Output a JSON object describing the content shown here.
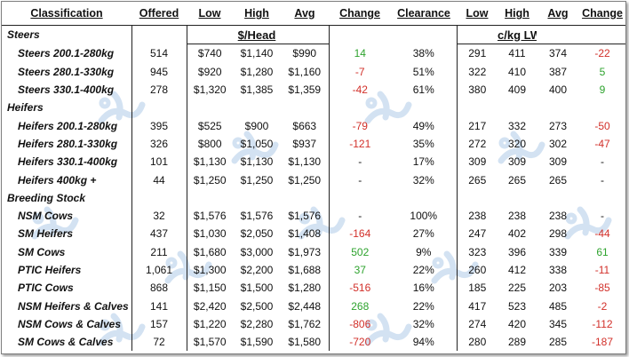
{
  "headers": {
    "classification": "Classification",
    "offered": "Offered",
    "low": "Low",
    "high": "High",
    "avg": "Avg",
    "change": "Change",
    "clearance": "Clearance",
    "low2": "Low",
    "high2": "High",
    "avg2": "Avg",
    "change2": "Change"
  },
  "units": {
    "head": "$/Head",
    "lw": "c/kg LW"
  },
  "sections": [
    {
      "title": "Steers",
      "rows": [
        {
          "name": "Steers 200.1-280kg",
          "offered": "514",
          "low": "$740",
          "high": "$1,140",
          "avg": "$990",
          "change": "14",
          "clearance": "38%",
          "low2": "291",
          "high2": "411",
          "avg2": "374",
          "change2": "-22"
        },
        {
          "name": "Steers 280.1-330kg",
          "offered": "945",
          "low": "$920",
          "high": "$1,280",
          "avg": "$1,160",
          "change": "-7",
          "clearance": "51%",
          "low2": "322",
          "high2": "410",
          "avg2": "387",
          "change2": "5"
        },
        {
          "name": "Steers 330.1-400kg",
          "offered": "278",
          "low": "$1,320",
          "high": "$1,385",
          "avg": "$1,359",
          "change": "-42",
          "clearance": "61%",
          "low2": "380",
          "high2": "409",
          "avg2": "400",
          "change2": "9"
        }
      ]
    },
    {
      "title": "Heifers",
      "rows": [
        {
          "name": "Heifers 200.1-280kg",
          "offered": "395",
          "low": "$525",
          "high": "$900",
          "avg": "$663",
          "change": "-79",
          "clearance": "49%",
          "low2": "217",
          "high2": "332",
          "avg2": "273",
          "change2": "-50"
        },
        {
          "name": "Heifers 280.1-330kg",
          "offered": "326",
          "low": "$800",
          "high": "$1,050",
          "avg": "$937",
          "change": "-121",
          "clearance": "35%",
          "low2": "272",
          "high2": "320",
          "avg2": "302",
          "change2": "-47"
        },
        {
          "name": "Heifers 330.1-400kg",
          "offered": "101",
          "low": "$1,130",
          "high": "$1,130",
          "avg": "$1,130",
          "change": "-",
          "clearance": "17%",
          "low2": "309",
          "high2": "309",
          "avg2": "309",
          "change2": "-"
        },
        {
          "name": "Heifers 400kg +",
          "offered": "44",
          "low": "$1,250",
          "high": "$1,250",
          "avg": "$1,250",
          "change": "-",
          "clearance": "32%",
          "low2": "265",
          "high2": "265",
          "avg2": "265",
          "change2": "-"
        }
      ]
    },
    {
      "title": "Breeding Stock",
      "rows": [
        {
          "name": "NSM Cows",
          "offered": "32",
          "low": "$1,576",
          "high": "$1,576",
          "avg": "$1,576",
          "change": "-",
          "clearance": "100%",
          "low2": "238",
          "high2": "238",
          "avg2": "238",
          "change2": "-"
        },
        {
          "name": "SM Heifers",
          "offered": "437",
          "low": "$1,030",
          "high": "$2,050",
          "avg": "$1,408",
          "change": "-164",
          "clearance": "27%",
          "low2": "247",
          "high2": "402",
          "avg2": "298",
          "change2": "-44"
        },
        {
          "name": "SM Cows",
          "offered": "211",
          "low": "$1,680",
          "high": "$3,000",
          "avg": "$1,973",
          "change": "502",
          "clearance": "9%",
          "low2": "323",
          "high2": "396",
          "avg2": "339",
          "change2": "61"
        },
        {
          "name": "PTIC Heifers",
          "offered": "1,061",
          "low": "$1,300",
          "high": "$2,200",
          "avg": "$1,688",
          "change": "37",
          "clearance": "22%",
          "low2": "260",
          "high2": "412",
          "avg2": "338",
          "change2": "-11"
        },
        {
          "name": "PTIC Cows",
          "offered": "868",
          "low": "$1,150",
          "high": "$1,500",
          "avg": "$1,280",
          "change": "-516",
          "clearance": "16%",
          "low2": "185",
          "high2": "225",
          "avg2": "203",
          "change2": "-85"
        },
        {
          "name": "NSM Heifers & Calves",
          "offered": "141",
          "low": "$2,420",
          "high": "$2,500",
          "avg": "$2,448",
          "change": "268",
          "clearance": "22%",
          "low2": "417",
          "high2": "523",
          "avg2": "485",
          "change2": "-2"
        },
        {
          "name": "NSM Cows & Calves",
          "offered": "157",
          "low": "$1,220",
          "high": "$2,280",
          "avg": "$1,762",
          "change": "-806",
          "clearance": "32%",
          "low2": "274",
          "high2": "420",
          "avg2": "345",
          "change2": "-112"
        },
        {
          "name": "SM Cows & Calves",
          "offered": "72",
          "low": "$1,570",
          "high": "$1,590",
          "avg": "$1,580",
          "change": "-720",
          "clearance": "94%",
          "low2": "280",
          "high2": "289",
          "avg2": "285",
          "change2": "-187"
        }
      ]
    }
  ],
  "colors": {
    "positive": "#2ea32e",
    "negative": "#d2302a",
    "watermark": "#c5d9ec"
  },
  "icons": {
    "watermark": "logo-watermark-icon"
  }
}
